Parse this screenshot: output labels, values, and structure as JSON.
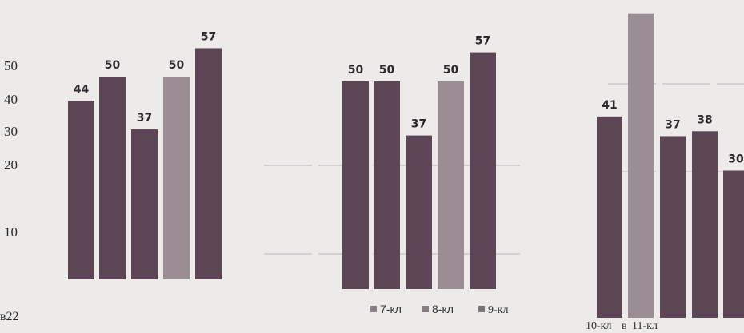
{
  "colors": {
    "background": "#ecebea",
    "dark_bar": "#5c4554",
    "light_bar": "#9a8e94",
    "label": "#2c2a2c"
  },
  "chart_data": [
    {
      "type": "bar",
      "title": "",
      "yticks": [
        "50",
        "40",
        "30",
        "20",
        "10"
      ],
      "values": [
        44,
        50,
        37,
        50,
        57
      ],
      "data_labels": [
        "44",
        "50",
        "37",
        "50",
        "57"
      ],
      "ylim": [
        0,
        60
      ],
      "grid": false,
      "legend": null
    },
    {
      "type": "bar",
      "title": "",
      "values": [
        50,
        50,
        37,
        50,
        57
      ],
      "data_labels": [
        "50",
        "50",
        "37",
        "50",
        "57"
      ],
      "ylim": [
        0,
        60
      ],
      "grid": true,
      "legend": {
        "placement": "bottom",
        "entries": [
          "7-кл",
          "8-кл",
          "9-кл"
        ]
      }
    },
    {
      "type": "bar",
      "title": "",
      "values": [
        41,
        62,
        37,
        38,
        30
      ],
      "data_labels": [
        "41",
        "",
        "37",
        "38",
        "30"
      ],
      "ylim": [
        0,
        60
      ],
      "grid": true,
      "legend": {
        "placement": "bottom",
        "entries": [
          "10-кл",
          "11-кл"
        ],
        "separator": "в"
      }
    }
  ],
  "caption_fragment": "в22"
}
